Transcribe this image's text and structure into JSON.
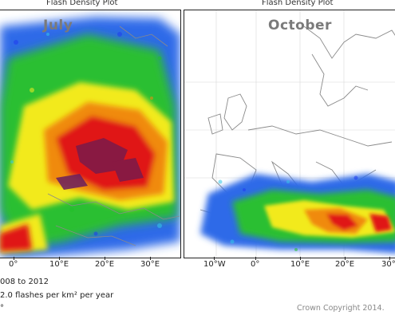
{
  "panels": [
    {
      "title": "Flash Density Plot",
      "month": "July",
      "ticks": [
        "0°",
        "10°E",
        "20°E",
        "30°E"
      ]
    },
    {
      "title": "Flash Density Plot",
      "month": "October",
      "ticks": [
        "10°W",
        "0°",
        "10°E",
        "20°E",
        "30°"
      ]
    }
  ],
  "footer": {
    "period_line": "008 to 2012",
    "density_line": "2.0 flashes per km² per year",
    "degree_fragment": "°",
    "copyright": "Crown Copyright 2014."
  },
  "colors": {
    "low": "#1f3cf0",
    "cyan": "#33c8e8",
    "green": "#22c02a",
    "yellow": "#f2ee20",
    "orange": "#f08a10",
    "red": "#e01812",
    "high": "#8a1840",
    "coast": "#8a8a8a"
  }
}
